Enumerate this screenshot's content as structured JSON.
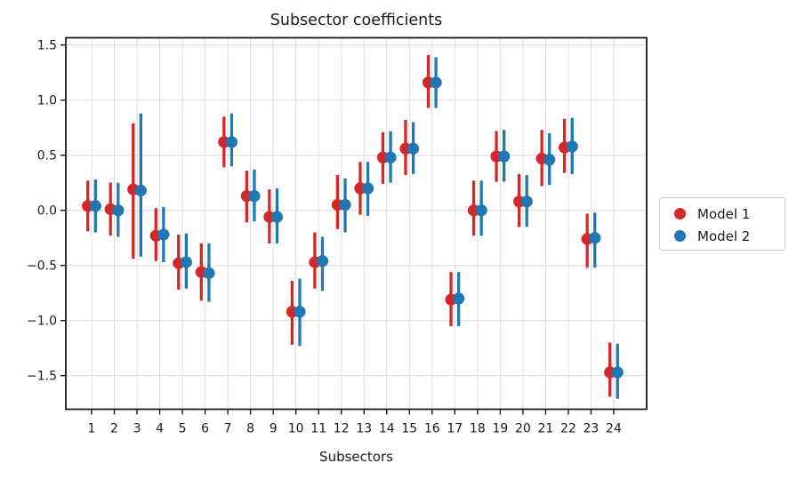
{
  "chart_data": {
    "type": "scatter",
    "title": "Subsector coefficients",
    "xlabel": "Subsectors",
    "ylabel": "",
    "categories": [
      "1",
      "2",
      "3",
      "4",
      "5",
      "6",
      "7",
      "8",
      "9",
      "10",
      "11",
      "12",
      "13",
      "14",
      "15",
      "16",
      "17",
      "18",
      "19",
      "20",
      "21",
      "22",
      "23",
      "24"
    ],
    "yticks": [
      1.5,
      1.0,
      0.5,
      0.0,
      -0.5,
      -1.0,
      -1.5
    ],
    "ylim": [
      -1.81,
      1.57
    ],
    "grid": true,
    "legend_position": "outside-right",
    "marker": "circle",
    "error_bars": true,
    "series": [
      {
        "name": "Model 1",
        "color": "#d62728",
        "values": [
          0.04,
          0.01,
          0.19,
          -0.23,
          -0.48,
          -0.56,
          0.62,
          0.13,
          -0.06,
          -0.92,
          -0.47,
          0.05,
          0.2,
          0.48,
          0.56,
          1.16,
          -0.81,
          0.0,
          0.49,
          0.08,
          0.47,
          0.57,
          -0.26,
          -1.47
        ],
        "ci_low": [
          -0.19,
          -0.23,
          -0.44,
          -0.46,
          -0.72,
          -0.82,
          0.39,
          -0.11,
          -0.3,
          -1.22,
          -0.71,
          -0.17,
          -0.04,
          0.24,
          0.32,
          0.93,
          -1.05,
          -0.23,
          0.26,
          -0.15,
          0.22,
          0.34,
          -0.52,
          -1.69
        ],
        "ci_high": [
          0.27,
          0.25,
          0.79,
          0.02,
          -0.22,
          -0.3,
          0.85,
          0.36,
          0.19,
          -0.64,
          -0.2,
          0.32,
          0.44,
          0.71,
          0.82,
          1.41,
          -0.56,
          0.27,
          0.72,
          0.33,
          0.73,
          0.83,
          -0.03,
          -1.2
        ]
      },
      {
        "name": "Model 2",
        "color": "#1f77b4",
        "values": [
          0.04,
          0.0,
          0.18,
          -0.22,
          -0.47,
          -0.57,
          0.62,
          0.13,
          -0.06,
          -0.92,
          -0.46,
          0.05,
          0.2,
          0.48,
          0.56,
          1.16,
          -0.8,
          0.0,
          0.49,
          0.08,
          0.46,
          0.58,
          -0.25,
          -1.47
        ],
        "ci_low": [
          -0.2,
          -0.24,
          -0.42,
          -0.47,
          -0.71,
          -0.83,
          0.4,
          -0.1,
          -0.3,
          -1.23,
          -0.73,
          -0.2,
          -0.05,
          0.25,
          0.33,
          0.93,
          -1.05,
          -0.23,
          0.26,
          -0.15,
          0.23,
          0.33,
          -0.52,
          -1.71
        ],
        "ci_high": [
          0.28,
          0.25,
          0.88,
          0.03,
          -0.21,
          -0.3,
          0.88,
          0.37,
          0.2,
          -0.62,
          -0.24,
          0.29,
          0.44,
          0.72,
          0.8,
          1.39,
          -0.56,
          0.27,
          0.73,
          0.32,
          0.7,
          0.84,
          -0.02,
          -1.21
        ]
      }
    ]
  },
  "legend": {
    "items": [
      {
        "label": "Model 1",
        "color": "#d62728"
      },
      {
        "label": "Model 2",
        "color": "#1f77b4"
      }
    ]
  },
  "style": {
    "grid_color": "#dcdcdc",
    "spine_color": "#1a1a1a",
    "tick_color": "#1a1a1a",
    "text_color": "#1a1a1a"
  }
}
